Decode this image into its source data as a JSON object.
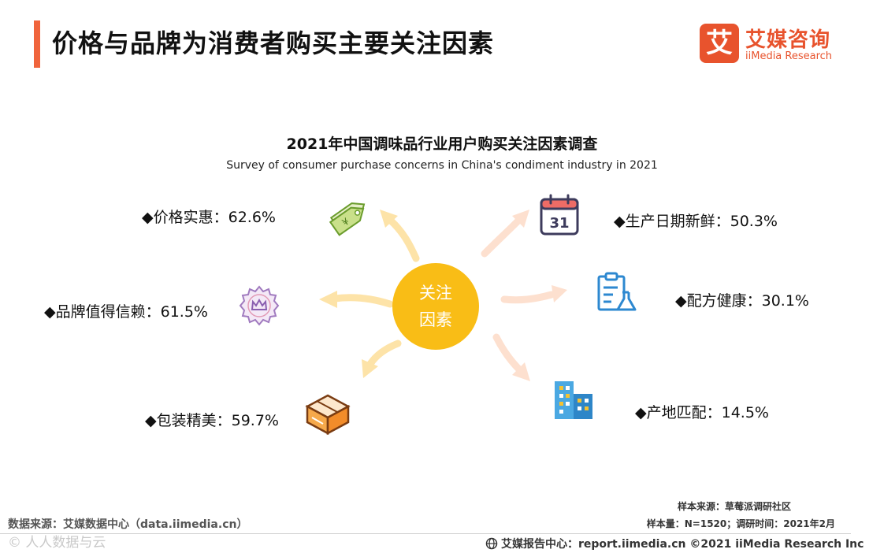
{
  "header": {
    "title": "价格与品牌为消费者购买主要关注因素",
    "logo_mark": "艾",
    "logo_cn": "艾媒咨询",
    "logo_en": "iiMedia Research"
  },
  "chart_data": {
    "type": "radial-infographic",
    "title": "2021年中国调味品行业用户购买关注因素调查",
    "subtitle": "Survey of consumer purchase concerns in China's condiment industry in 2021",
    "center_label": [
      "关注",
      "因素"
    ],
    "unit": "%",
    "factors": [
      {
        "name": "价格实惠",
        "value": 62.6,
        "label": "◆价格实惠：62.6%",
        "icon": "price-tag-icon"
      },
      {
        "name": "品牌值得信赖",
        "value": 61.5,
        "label": "◆品牌值得信赖：61.5%",
        "icon": "crown-badge-icon"
      },
      {
        "name": "包装精美",
        "value": 59.7,
        "label": "◆包装精美：59.7%",
        "icon": "package-box-icon"
      },
      {
        "name": "生产日期新鲜",
        "value": 50.3,
        "label": "◆生产日期新鲜：50.3%",
        "icon": "calendar-icon",
        "icon_text": "31"
      },
      {
        "name": "配方健康",
        "value": 30.1,
        "label": "◆配方健康：30.1%",
        "icon": "recipe-flask-icon"
      },
      {
        "name": "产地匹配",
        "value": 14.5,
        "label": "◆产地匹配：14.5%",
        "icon": "buildings-icon"
      }
    ]
  },
  "footer": {
    "data_source": "数据来源：艾媒数据中心（data.iimedia.cn）",
    "sample_source": "样本来源：草莓派调研社区",
    "sample_size": "样本量：N=1520；调研时间：2021年2月",
    "report_center": "艾媒报告中心：report.iimedia.cn   ©2021  iiMedia Research  Inc",
    "watermark": "© 人人数据与云"
  },
  "colors": {
    "accent": "#f0643c",
    "center": "#f9bd16",
    "arrow_left": "#fde3a8",
    "arrow_right": "#fde0cf"
  }
}
